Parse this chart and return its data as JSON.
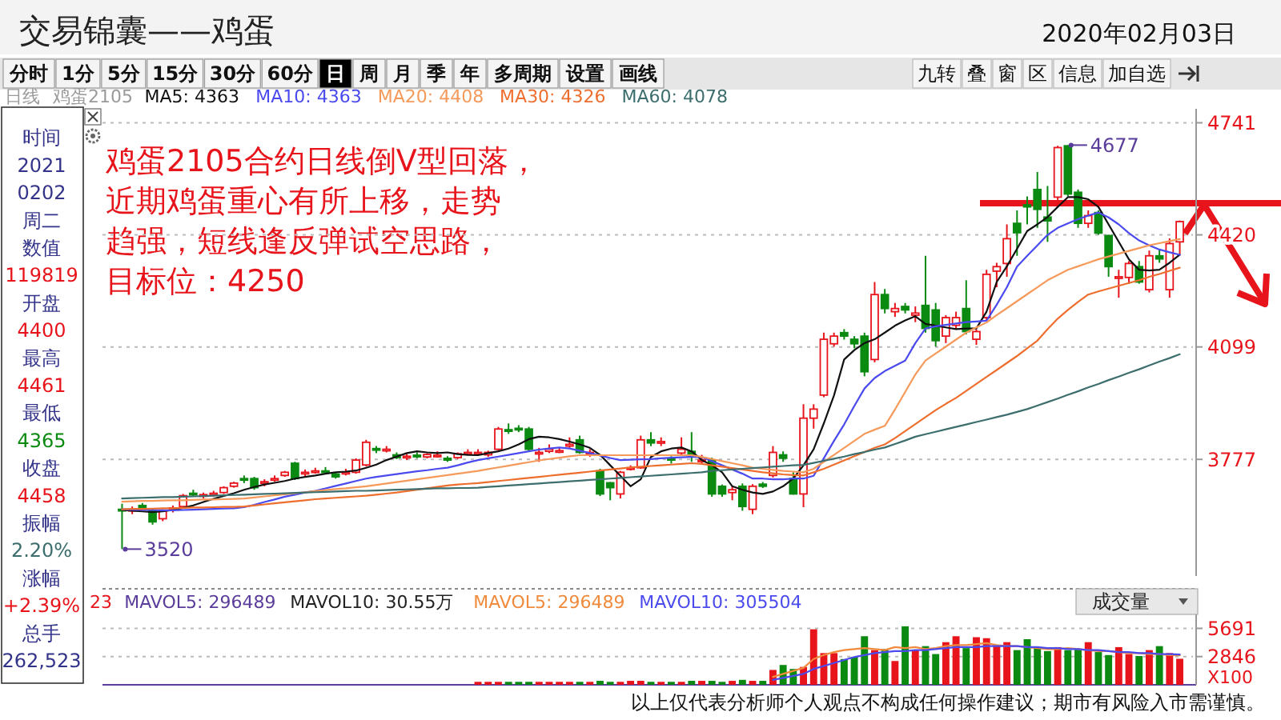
{
  "chart_data": [
    {
      "type": "candlestick",
      "title": "交易锦囊——鸡蛋",
      "subtitle": "2020年02月03日",
      "categories": [
        null,
        null,
        null,
        null,
        null,
        null,
        null,
        null,
        null,
        null,
        null,
        null,
        null,
        null,
        null,
        null,
        null,
        null,
        null,
        null,
        null,
        null,
        null,
        null,
        null,
        null,
        null,
        null,
        null,
        null,
        null,
        null,
        null,
        null,
        null,
        null,
        null,
        null,
        null,
        null,
        null,
        null,
        null,
        null,
        null,
        null,
        null,
        null,
        null,
        null,
        null,
        null,
        null,
        null,
        null,
        null,
        null,
        null,
        null,
        null,
        null,
        null,
        null,
        null,
        null,
        null,
        null,
        null,
        null,
        null,
        null,
        null,
        null,
        null,
        null,
        null,
        null,
        null,
        null,
        null,
        null,
        null,
        null,
        null,
        null,
        null,
        null,
        null,
        null,
        null,
        null,
        null,
        null,
        null,
        null,
        null,
        null,
        null,
        null,
        null,
        null,
        null,
        null,
        null,
        null
      ],
      "ohlc": [
        [
          3634,
          3650,
          3520,
          3630
        ],
        [
          3630,
          3642,
          3620,
          3634
        ],
        [
          3645,
          3652,
          3630,
          3638
        ],
        [
          3630,
          3636,
          3590,
          3598
        ],
        [
          3607,
          3634,
          3600,
          3630
        ],
        [
          3634,
          3645,
          3625,
          3638
        ],
        [
          3642,
          3678,
          3638,
          3673
        ],
        [
          3680,
          3690,
          3670,
          3676
        ],
        [
          3673,
          3682,
          3665,
          3676
        ],
        [
          3676,
          3687,
          3670,
          3680
        ],
        [
          3682,
          3700,
          3678,
          3696
        ],
        [
          3700,
          3713,
          3696,
          3709
        ],
        [
          3722,
          3731,
          3709,
          3718
        ],
        [
          3722,
          3727,
          3690,
          3696
        ],
        [
          3709,
          3720,
          3700,
          3713
        ],
        [
          3718,
          3731,
          3713,
          3722
        ],
        [
          3731,
          3744,
          3727,
          3740
        ],
        [
          3766,
          3770,
          3718,
          3722
        ],
        [
          3736,
          3748,
          3727,
          3740
        ],
        [
          3740,
          3753,
          3736,
          3744
        ],
        [
          3744,
          3755,
          3735,
          3740
        ],
        [
          3735,
          3740,
          3722,
          3727
        ],
        [
          3736,
          3750,
          3731,
          3740
        ],
        [
          3740,
          3780,
          3736,
          3775
        ],
        [
          3761,
          3833,
          3757,
          3826
        ],
        [
          3808,
          3815,
          3795,
          3804
        ],
        [
          3806,
          3815,
          3797,
          3806
        ],
        [
          3790,
          3797,
          3778,
          3782
        ],
        [
          3784,
          3793,
          3775,
          3786
        ],
        [
          3789,
          3797,
          3780,
          3786
        ],
        [
          3784,
          3795,
          3780,
          3791
        ],
        [
          3789,
          3800,
          3782,
          3789
        ],
        [
          3780,
          3786,
          3770,
          3775
        ],
        [
          3782,
          3797,
          3778,
          3793
        ],
        [
          3795,
          3806,
          3790,
          3797
        ],
        [
          3797,
          3806,
          3790,
          3797
        ],
        [
          3790,
          3802,
          3784,
          3797
        ],
        [
          3806,
          3870,
          3802,
          3864
        ],
        [
          3862,
          3880,
          3850,
          3858
        ],
        [
          3866,
          3875,
          3855,
          3862
        ],
        [
          3864,
          3870,
          3800,
          3806
        ],
        [
          3797,
          3810,
          3770,
          3797
        ],
        [
          3800,
          3820,
          3795,
          3806
        ],
        [
          3802,
          3810,
          3795,
          3802
        ],
        [
          3815,
          3840,
          3810,
          3820
        ],
        [
          3833,
          3845,
          3793,
          3797
        ],
        [
          3797,
          3806,
          3784,
          3797
        ],
        [
          3744,
          3750,
          3672,
          3678
        ],
        [
          3710,
          3712,
          3660,
          3696
        ],
        [
          3678,
          3744,
          3665,
          3740
        ],
        [
          3750,
          3760,
          3745,
          3753
        ],
        [
          3753,
          3845,
          3750,
          3833
        ],
        [
          3833,
          3855,
          3815,
          3824
        ],
        [
          3828,
          3840,
          3815,
          3828
        ],
        [
          3780,
          3786,
          3765,
          3775
        ],
        [
          3795,
          3840,
          3790,
          3806
        ],
        [
          3800,
          3855,
          3770,
          3787
        ],
        [
          3775,
          3790,
          3765,
          3775
        ],
        [
          3775,
          3782,
          3670,
          3678
        ],
        [
          3700,
          3705,
          3670,
          3678
        ],
        [
          3682,
          3700,
          3660,
          3690
        ],
        [
          3700,
          3708,
          3630,
          3642
        ],
        [
          3634,
          3706,
          3620,
          3700
        ],
        [
          3706,
          3712,
          3695,
          3700
        ],
        [
          3731,
          3815,
          3725,
          3797
        ],
        [
          3790,
          3800,
          3770,
          3780
        ],
        [
          3722,
          3740,
          3676,
          3678
        ],
        [
          3678,
          3935,
          3640,
          3895
        ],
        [
          3895,
          3935,
          3865,
          3921
        ],
        [
          3961,
          4140,
          3955,
          4121
        ],
        [
          4108,
          4140,
          4100,
          4130
        ],
        [
          4140,
          4150,
          4120,
          4130
        ],
        [
          4121,
          4130,
          4095,
          4108
        ],
        [
          4130,
          4140,
          4015,
          4028
        ],
        [
          4063,
          4285,
          4055,
          4249
        ],
        [
          4249,
          4265,
          4195,
          4209
        ],
        [
          4200,
          4225,
          4185,
          4209
        ],
        [
          4215,
          4225,
          4195,
          4205
        ],
        [
          4190,
          4215,
          4170,
          4196
        ],
        [
          4218,
          4360,
          4140,
          4152
        ],
        [
          4205,
          4225,
          4100,
          4117
        ],
        [
          4130,
          4190,
          4110,
          4183
        ],
        [
          4161,
          4200,
          4150,
          4183
        ],
        [
          4209,
          4290,
          4135,
          4143
        ],
        [
          4121,
          4150,
          4105,
          4143
        ],
        [
          4183,
          4320,
          4175,
          4307
        ],
        [
          4316,
          4340,
          4270,
          4329
        ],
        [
          4338,
          4450,
          4300,
          4409
        ],
        [
          4453,
          4490,
          4360,
          4426
        ],
        [
          4506,
          4530,
          4450,
          4500
        ],
        [
          4550,
          4600,
          4440,
          4493
        ],
        [
          4471,
          4560,
          4400,
          4460
        ],
        [
          4528,
          4675,
          4520,
          4670
        ],
        [
          4675,
          4677,
          4530,
          4537
        ],
        [
          4542,
          4550,
          4440,
          4453
        ],
        [
          4453,
          4490,
          4440,
          4475
        ],
        [
          4484,
          4490,
          4420,
          4425
        ],
        [
          4418,
          4420,
          4300,
          4329
        ],
        [
          4298,
          4320,
          4240,
          4300
        ],
        [
          4298,
          4345,
          4280,
          4338
        ],
        [
          4329,
          4345,
          4280,
          4285
        ],
        [
          4263,
          4375,
          4255,
          4360
        ],
        [
          4360,
          4380,
          4340,
          4351
        ],
        [
          4263,
          4410,
          4240,
          4395
        ],
        [
          4400,
          4461,
          4365,
          4458
        ]
      ],
      "colors": [
        "#0b8a12",
        "#e8141b",
        "#0b8a12",
        "#0b8a12",
        "#e8141b",
        "#e8141b",
        "#e8141b",
        "#0b8a12",
        "#e8141b",
        "#e8141b",
        "#e8141b",
        "#e8141b",
        "#0b8a12",
        "#0b8a12",
        "#e8141b",
        "#e8141b",
        "#e8141b",
        "#0b8a12",
        "#e8141b",
        "#e8141b",
        "#0b8a12",
        "#0b8a12",
        "#e8141b",
        "#e8141b",
        "#e8141b",
        "#0b8a12",
        "#e8141b",
        "#0b8a12",
        "#e8141b",
        "#0b8a12",
        "#e8141b",
        "#e8141b",
        "#0b8a12",
        "#e8141b",
        "#e8141b",
        "#e8141b",
        "#e8141b",
        "#e8141b",
        "#0b8a12",
        "#0b8a12",
        "#0b8a12",
        "#e8141b",
        "#e8141b",
        "#e8141b",
        "#e8141b",
        "#0b8a12",
        "#e8141b",
        "#0b8a12",
        "#0b8a12",
        "#e8141b",
        "#e8141b",
        "#e8141b",
        "#0b8a12",
        "#e8141b",
        "#0b8a12",
        "#e8141b",
        "#0b8a12",
        "#e8141b",
        "#0b8a12",
        "#0b8a12",
        "#e8141b",
        "#0b8a12",
        "#e8141b",
        "#0b8a12",
        "#e8141b",
        "#0b8a12",
        "#0b8a12",
        "#e8141b",
        "#e8141b",
        "#e8141b",
        "#e8141b",
        "#0b8a12",
        "#0b8a12",
        "#0b8a12",
        "#e8141b",
        "#0b8a12",
        "#e8141b",
        "#0b8a12",
        "#e8141b",
        "#0b8a12",
        "#0b8a12",
        "#e8141b",
        "#e8141b",
        "#0b8a12",
        "#e8141b",
        "#e8141b",
        "#e8141b",
        "#e8141b",
        "#0b8a12",
        "#0b8a12",
        "#0b8a12",
        "#0b8a12",
        "#e8141b",
        "#0b8a12",
        "#0b8a12",
        "#e8141b",
        "#0b8a12",
        "#0b8a12",
        "#e8141b",
        "#e8141b",
        "#0b8a12",
        "#e8141b",
        "#0b8a12",
        "#e8141b",
        "#e8141b"
      ],
      "series": [
        {
          "type": "line",
          "name": "MA5: 4363",
          "color": "#111111",
          "values": [
            3632,
            3630,
            3628,
            3626,
            3628,
            3632,
            3638,
            3645,
            3655,
            3664,
            3672,
            3680,
            3690,
            3698,
            3705,
            3710,
            3715,
            3722,
            3727,
            3731,
            3736,
            3740,
            3742,
            3745,
            3753,
            3762,
            3775,
            3785,
            3795,
            3800,
            3797,
            3795,
            3797,
            3792,
            3790,
            3789,
            3795,
            3800,
            3808,
            3820,
            3835,
            3842,
            3840,
            3835,
            3828,
            3820,
            3810,
            3790,
            3760,
            3730,
            3700,
            3720,
            3784,
            3800,
            3808,
            3811,
            3800,
            3775,
            3760,
            3740,
            3700,
            3690,
            3682,
            3678,
            3685,
            3700,
            3722,
            3760,
            3806,
            3880,
            3960,
            4063,
            4090,
            4110,
            4121,
            4140,
            4160,
            4175,
            4187,
            4165,
            4160,
            4155,
            4150,
            4152,
            4152,
            4200,
            4285,
            4330,
            4380,
            4431,
            4450,
            4471,
            4500,
            4528,
            4528,
            4522,
            4500,
            4450,
            4400,
            4350,
            4320,
            4318,
            4320,
            4340,
            4363
          ]
        },
        {
          "type": "line",
          "name": "MA10: 4363",
          "color": "#4a4aee",
          "values": [
            3634,
            3633,
            3632,
            3632,
            3631,
            3631,
            3632,
            3633,
            3634,
            3635,
            3636,
            3637,
            3640,
            3647,
            3655,
            3662,
            3670,
            3676,
            3682,
            3687,
            3694,
            3701,
            3708,
            3715,
            3722,
            3727,
            3731,
            3735,
            3739,
            3743,
            3746,
            3750,
            3753,
            3760,
            3768,
            3775,
            3780,
            3785,
            3790,
            3795,
            3800,
            3805,
            3808,
            3811,
            3808,
            3802,
            3795,
            3788,
            3781,
            3775,
            3776,
            3777,
            3778,
            3780,
            3782,
            3783,
            3784,
            3784,
            3772,
            3760,
            3748,
            3736,
            3722,
            3722,
            3720,
            3720,
            3722,
            3722,
            3730,
            3780,
            3830,
            3877,
            3930,
            3980,
            4010,
            4030,
            4045,
            4060,
            4110,
            4152,
            4158,
            4162,
            4166,
            4170,
            4172,
            4174,
            4220,
            4270,
            4329,
            4360,
            4390,
            4420,
            4440,
            4453,
            4465,
            4475,
            4484,
            4470,
            4450,
            4425,
            4404,
            4390,
            4378,
            4370,
            4363
          ]
        },
        {
          "type": "line",
          "name": "MA20: 4408",
          "color": "#f59a5a",
          "values": [
            3656,
            3657,
            3658,
            3658,
            3659,
            3660,
            3660,
            3661,
            3662,
            3662,
            3663,
            3664,
            3665,
            3668,
            3671,
            3674,
            3677,
            3680,
            3683,
            3686,
            3689,
            3692,
            3694,
            3697,
            3700,
            3704,
            3708,
            3712,
            3716,
            3720,
            3724,
            3728,
            3732,
            3736,
            3740,
            3744,
            3749,
            3754,
            3759,
            3764,
            3769,
            3774,
            3778,
            3782,
            3786,
            3789,
            3789,
            3789,
            3789,
            3789,
            3789,
            3789,
            3789,
            3789,
            3789,
            3789,
            3789,
            3784,
            3778,
            3772,
            3766,
            3760,
            3753,
            3750,
            3747,
            3744,
            3742,
            3740,
            3750,
            3770,
            3790,
            3810,
            3830,
            3850,
            3862,
            3873,
            3920,
            3970,
            4020,
            4060,
            4080,
            4100,
            4120,
            4140,
            4155,
            4169,
            4190,
            4210,
            4230,
            4250,
            4270,
            4290,
            4305,
            4320,
            4330,
            4340,
            4350,
            4358,
            4366,
            4374,
            4382,
            4390,
            4396,
            4402,
            4408
          ]
        },
        {
          "type": "line",
          "name": "MA30: 4326",
          "color": "#ee6e2e",
          "values": [
            3634,
            3635,
            3635,
            3636,
            3637,
            3637,
            3638,
            3639,
            3639,
            3640,
            3641,
            3641,
            3642,
            3645,
            3648,
            3651,
            3654,
            3657,
            3660,
            3663,
            3665,
            3667,
            3669,
            3671,
            3673,
            3676,
            3679,
            3682,
            3686,
            3690,
            3694,
            3698,
            3702,
            3705,
            3707,
            3709,
            3712,
            3715,
            3718,
            3721,
            3724,
            3727,
            3730,
            3733,
            3736,
            3739,
            3742,
            3745,
            3748,
            3751,
            3754,
            3756,
            3758,
            3760,
            3762,
            3764,
            3766,
            3764,
            3760,
            3756,
            3752,
            3748,
            3744,
            3740,
            3737,
            3734,
            3732,
            3731,
            3740,
            3750,
            3762,
            3774,
            3786,
            3798,
            3810,
            3820,
            3838,
            3858,
            3878,
            3898,
            3918,
            3936,
            3953,
            3973,
            3993,
            4013,
            4033,
            4053,
            4073,
            4095,
            4117,
            4150,
            4180,
            4205,
            4228,
            4249,
            4258,
            4266,
            4274,
            4282,
            4290,
            4300,
            4308,
            4317,
            4326
          ]
        },
        {
          "type": "line",
          "name": "MA60: 4078",
          "color": "#3d6e6e",
          "values": [
            3665,
            3666,
            3667,
            3668,
            3669,
            3669,
            3670,
            3671,
            3672,
            3673,
            3674,
            3675,
            3676,
            3677,
            3678,
            3679,
            3680,
            3681,
            3682,
            3683,
            3684,
            3685,
            3686,
            3687,
            3687,
            3688,
            3689,
            3690,
            3691,
            3692,
            3693,
            3694,
            3694,
            3695,
            3695,
            3696,
            3698,
            3700,
            3702,
            3704,
            3706,
            3708,
            3710,
            3712,
            3714,
            3716,
            3718,
            3720,
            3722,
            3724,
            3726,
            3728,
            3730,
            3732,
            3734,
            3736,
            3738,
            3740,
            3744,
            3746,
            3748,
            3750,
            3752,
            3754,
            3756,
            3758,
            3760,
            3761,
            3767,
            3773,
            3779,
            3785,
            3792,
            3798,
            3805,
            3811,
            3821,
            3831,
            3842,
            3849,
            3856,
            3863,
            3870,
            3877,
            3884,
            3891,
            3898,
            3905,
            3913,
            3921,
            3931,
            3941,
            3951,
            3962,
            3972,
            3983,
            3993,
            4004,
            4014,
            4025,
            4035,
            4046,
            4057,
            4067,
            4078
          ]
        }
      ],
      "ylim": [
        3443,
        4781
      ],
      "yticks": [
        3777,
        4099,
        4420,
        4741
      ],
      "grid": "y",
      "legend": "top",
      "annotations": [
        "鸡蛋2105合约日线倒V型回落，近期鸡蛋重心有所上移，走势趋强，短线逢反弹试空思路，目标位：4250",
        "以上仅代表分析师个人观点不构成任何操作建议；期市有风险入市需谨慎。",
        "分时",
        "1分",
        "5分",
        "15分",
        "30分",
        "60分",
        "日",
        "周",
        "月",
        "季",
        "年",
        "多周期",
        "设置",
        "画线",
        "九转",
        "叠",
        "窗",
        "区",
        "信息",
        "加自选",
        "日线",
        "鸡蛋2105",
        "时间",
        "2021",
        "0202",
        "周二",
        "数值",
        "119819",
        "开盘",
        "4400",
        "最高",
        "4461",
        "最低",
        "4365",
        "收盘",
        "4458",
        "振幅",
        "2.20%",
        "涨幅",
        "+2.39%",
        "总手",
        "262,523",
        "4677",
        "3520"
      ]
    },
    {
      "type": "bar",
      "categories": [
        null,
        null,
        null,
        null,
        null,
        null,
        null,
        null,
        null,
        null,
        null,
        null,
        null,
        null,
        null,
        null,
        null,
        null,
        null,
        null,
        null,
        null,
        null,
        null,
        null,
        null,
        null,
        null,
        null,
        null,
        null,
        null,
        null,
        null,
        null,
        null,
        null,
        null,
        null,
        null,
        null,
        null,
        null,
        null,
        null,
        null,
        null,
        null,
        null,
        null,
        null,
        null,
        null,
        null,
        null,
        null,
        null,
        null,
        null,
        null,
        null,
        null,
        null,
        null,
        null,
        null,
        null,
        null,
        null,
        null,
        null,
        null,
        null,
        null,
        null,
        null,
        null,
        null,
        null,
        null,
        null,
        null,
        null,
        null,
        null,
        null,
        null,
        null,
        null,
        null,
        null,
        null,
        null,
        null,
        null,
        null,
        null,
        null,
        null,
        null,
        null,
        null,
        null,
        null,
        null
      ],
      "values": [
        null,
        null,
        null,
        null,
        null,
        null,
        null,
        null,
        null,
        null,
        null,
        null,
        null,
        null,
        null,
        null,
        null,
        null,
        null,
        null,
        null,
        null,
        null,
        null,
        null,
        null,
        null,
        null,
        null,
        null,
        null,
        null,
        null,
        null,
        null,
        300,
        300,
        300,
        300,
        300,
        300,
        300,
        300,
        300,
        300,
        300,
        300,
        400,
        300,
        300,
        400,
        400,
        300,
        300,
        300,
        300,
        400,
        400,
        400,
        300,
        400,
        500,
        400,
        400,
        1500,
        2000,
        1600,
        1800,
        5600,
        3200,
        3200,
        2600,
        2800,
        4900,
        3500,
        3600,
        2400,
        5900,
        3500,
        3900,
        3100,
        4300,
        4900,
        3700,
        4800,
        4700,
        4000,
        4300,
        3500,
        4600,
        3700,
        3400,
        3800,
        3500,
        3600,
        4300,
        3300,
        3000,
        3800,
        3100,
        2900,
        3500,
        3900,
        3200,
        2625
      ],
      "colors": [
        null,
        null,
        null,
        null,
        null,
        null,
        null,
        null,
        null,
        null,
        null,
        null,
        null,
        null,
        null,
        null,
        null,
        null,
        null,
        null,
        null,
        null,
        null,
        null,
        null,
        null,
        null,
        null,
        null,
        null,
        null,
        null,
        null,
        null,
        null,
        "#e8141b",
        "#e8141b",
        "#e8141b",
        "#0b8a12",
        "#0b8a12",
        "#0b8a12",
        "#e8141b",
        "#e8141b",
        "#e8141b",
        "#e8141b",
        "#0b8a12",
        "#e8141b",
        "#0b8a12",
        "#0b8a12",
        "#e8141b",
        "#e8141b",
        "#e8141b",
        "#0b8a12",
        "#e8141b",
        "#0b8a12",
        "#e8141b",
        "#0b8a12",
        "#e8141b",
        "#0b8a12",
        "#0b8a12",
        "#e8141b",
        "#0b8a12",
        "#e8141b",
        "#0b8a12",
        "#e8141b",
        "#0b8a12",
        "#0b8a12",
        "#e8141b",
        "#e8141b",
        "#e8141b",
        "#e8141b",
        "#0b8a12",
        "#0b8a12",
        "#0b8a12",
        "#e8141b",
        "#0b8a12",
        "#e8141b",
        "#0b8a12",
        "#e8141b",
        "#0b8a12",
        "#0b8a12",
        "#e8141b",
        "#e8141b",
        "#0b8a12",
        "#e8141b",
        "#e8141b",
        "#e8141b",
        "#e8141b",
        "#0b8a12",
        "#0b8a12",
        "#0b8a12",
        "#0b8a12",
        "#e8141b",
        "#0b8a12",
        "#0b8a12",
        "#e8141b",
        "#0b8a12",
        "#0b8a12",
        "#e8141b",
        "#e8141b",
        "#0b8a12",
        "#e8141b",
        "#0b8a12",
        "#e8141b",
        "#e8141b"
      ],
      "series": [
        {
          "type": "line",
          "name": "MAVOL5: 296489",
          "color": "#f08a3c",
          "values": [
            null,
            null,
            null,
            null,
            null,
            null,
            null,
            null,
            null,
            null,
            null,
            null,
            null,
            null,
            null,
            null,
            null,
            null,
            null,
            null,
            null,
            null,
            null,
            null,
            null,
            null,
            null,
            null,
            null,
            null,
            null,
            null,
            null,
            null,
            null,
            null,
            null,
            null,
            null,
            null,
            null,
            null,
            null,
            null,
            null,
            null,
            null,
            null,
            null,
            null,
            null,
            null,
            null,
            null,
            null,
            null,
            null,
            null,
            null,
            null,
            null,
            null,
            null,
            null,
            800,
            1100,
            1400,
            1700,
            2600,
            3000,
            3300,
            3500,
            3600,
            3700,
            3600,
            3500,
            3800,
            3700,
            3800,
            3600,
            3700,
            3900,
            4000,
            4000,
            4100,
            4200,
            4000,
            3900,
            3900,
            3800,
            3700,
            3600,
            3600,
            3700,
            3600,
            3500,
            3400,
            3400,
            3300,
            3200,
            3200,
            3100,
            3100,
            3000,
            2965
          ]
        },
        {
          "type": "line",
          "name": "MAVOL10: 305504",
          "color": "#4a4aee",
          "values": [
            null,
            null,
            null,
            null,
            null,
            null,
            null,
            null,
            null,
            null,
            null,
            null,
            null,
            null,
            null,
            null,
            null,
            null,
            null,
            null,
            null,
            null,
            null,
            null,
            null,
            null,
            null,
            null,
            null,
            null,
            null,
            null,
            null,
            null,
            null,
            null,
            null,
            null,
            null,
            null,
            null,
            null,
            null,
            null,
            null,
            null,
            null,
            null,
            null,
            null,
            null,
            null,
            null,
            null,
            null,
            null,
            null,
            null,
            null,
            null,
            null,
            null,
            null,
            null,
            500,
            700,
            900,
            1100,
            1600,
            1900,
            2200,
            2500,
            2800,
            3000,
            3200,
            3300,
            3400,
            3400,
            3500,
            3500,
            3600,
            3700,
            3800,
            3800,
            3800,
            3900,
            3900,
            3900,
            3900,
            3800,
            3800,
            3700,
            3700,
            3600,
            3600,
            3500,
            3500,
            3400,
            3300,
            3300,
            3200,
            3200,
            3100,
            3100,
            3055
          ]
        }
      ],
      "ylim": [
        0,
        7100
      ],
      "yticks": [
        2846,
        5691
      ],
      "ylabel": "X100",
      "grid": "y",
      "legend": "top",
      "annotations": [
        "23",
        "MAVOL5: 296489",
        "MAVOL10: 30.55万",
        "成交量"
      ]
    }
  ]
}
